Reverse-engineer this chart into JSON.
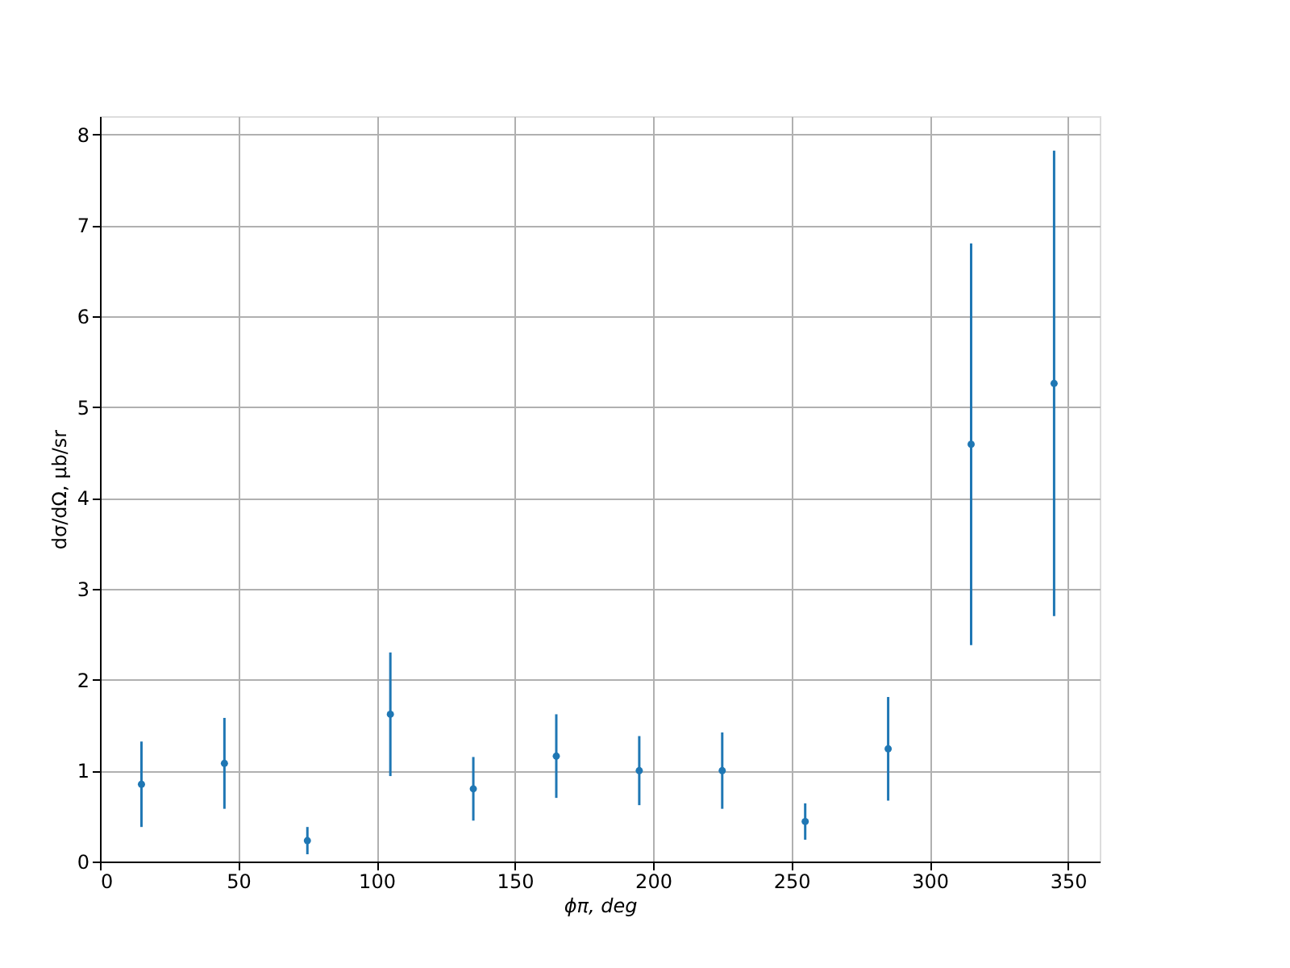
{
  "chart_data": {
    "type": "scatter",
    "xlabel": "ϕπ, deg",
    "ylabel": "dσ/dΩ, μb/sr",
    "x": [
      15,
      45,
      75,
      105,
      135,
      165,
      195,
      225,
      255,
      285,
      315,
      345
    ],
    "series": [
      {
        "color": "#1f77b4",
        "values": [
          0.85,
          1.08,
          0.23,
          1.62,
          0.8,
          1.16,
          1.0,
          1.0,
          0.44,
          1.24,
          4.59,
          5.26
        ],
        "errors": [
          0.47,
          0.5,
          0.15,
          0.68,
          0.35,
          0.46,
          0.38,
          0.42,
          0.2,
          0.57,
          2.21,
          2.56
        ]
      }
    ],
    "xlim": [
      0,
      361.5
    ],
    "ylim": [
      0,
      8.2
    ],
    "xticks": [
      0,
      50,
      100,
      150,
      200,
      250,
      300,
      350
    ],
    "yticks": [
      0,
      1,
      2,
      3,
      4,
      5,
      6,
      7,
      8
    ],
    "grid": true,
    "marker": "circle"
  }
}
